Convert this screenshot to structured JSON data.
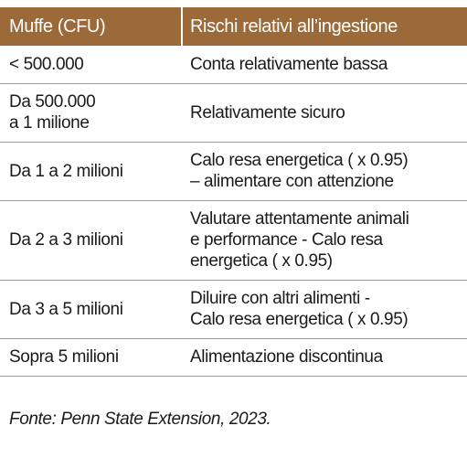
{
  "table": {
    "header": [
      "Muffe (CFU)",
      "Rischi relativi all’ingestione"
    ],
    "rows": [
      [
        [
          "< 500.000"
        ],
        [
          "Conta relativamente bassa"
        ]
      ],
      [
        [
          "Da 500.000",
          "a 1 milione"
        ],
        [
          "Relativamente sicuro"
        ]
      ],
      [
        [
          "Da 1 a 2 milioni"
        ],
        [
          "Calo resa energetica ( x 0.95)",
          "– alimentare con attenzione"
        ]
      ],
      [
        [
          "Da 2 a 3 milioni"
        ],
        [
          "Valutare attentamente animali",
          "e performance - Calo resa",
          "energetica ( x 0.95)"
        ]
      ],
      [
        [
          "Da 3 a 5 milioni"
        ],
        [
          "Diluire con altri alimenti -",
          "Calo resa energetica ( x 0.95)"
        ]
      ],
      [
        [
          "Sopra 5 milioni"
        ],
        [
          "Alimentazione discontinua"
        ]
      ]
    ],
    "footer": "Fonte: Penn State Extension, 2023."
  }
}
